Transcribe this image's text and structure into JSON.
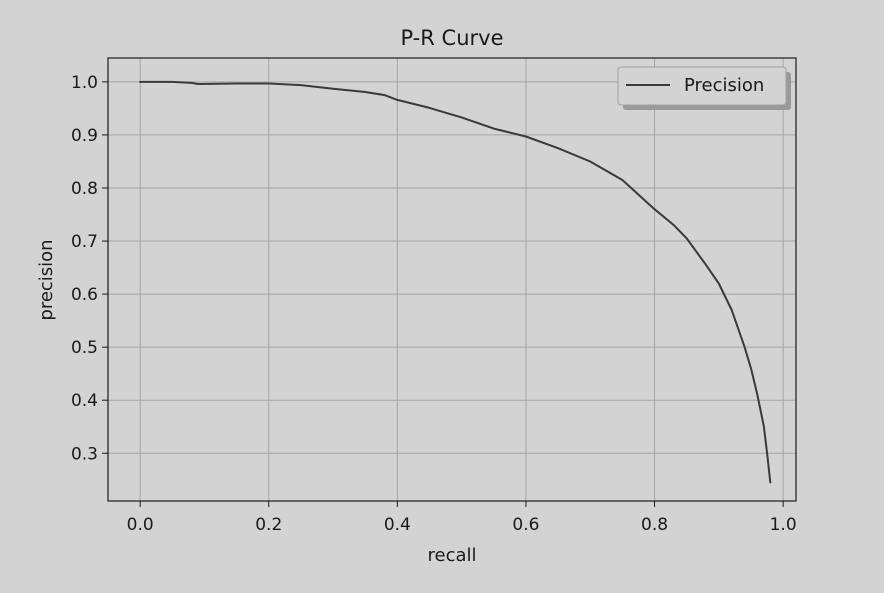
{
  "chart_data": {
    "type": "line",
    "title": "P-R Curve",
    "xlabel": "recall",
    "ylabel": "precision",
    "xlim": [
      -0.05,
      1.02
    ],
    "ylim": [
      0.21,
      1.045
    ],
    "xticks": [
      0.0,
      0.2,
      0.4,
      0.6,
      0.8,
      1.0
    ],
    "xtick_labels": [
      "0.0",
      "0.2",
      "0.4",
      "0.6",
      "0.8",
      "1.0"
    ],
    "yticks": [
      0.3,
      0.4,
      0.5,
      0.6,
      0.7,
      0.8,
      0.9,
      1.0
    ],
    "ytick_labels": [
      "0.3",
      "0.4",
      "0.5",
      "0.6",
      "0.7",
      "0.8",
      "0.9",
      "1.0"
    ],
    "grid": true,
    "legend_position": "top-right",
    "series": [
      {
        "name": "Precision",
        "color": "#3a3a3a",
        "x": [
          0.0,
          0.05,
          0.08,
          0.09,
          0.15,
          0.2,
          0.25,
          0.3,
          0.35,
          0.38,
          0.4,
          0.45,
          0.5,
          0.55,
          0.6,
          0.65,
          0.7,
          0.75,
          0.8,
          0.83,
          0.85,
          0.88,
          0.9,
          0.92,
          0.94,
          0.95,
          0.96,
          0.97,
          0.975,
          0.98
        ],
        "y": [
          1.0,
          1.0,
          0.998,
          0.996,
          0.997,
          0.997,
          0.994,
          0.987,
          0.981,
          0.975,
          0.966,
          0.951,
          0.933,
          0.912,
          0.897,
          0.875,
          0.85,
          0.815,
          0.76,
          0.73,
          0.705,
          0.655,
          0.62,
          0.57,
          0.5,
          0.46,
          0.41,
          0.35,
          0.3,
          0.245
        ]
      }
    ]
  }
}
